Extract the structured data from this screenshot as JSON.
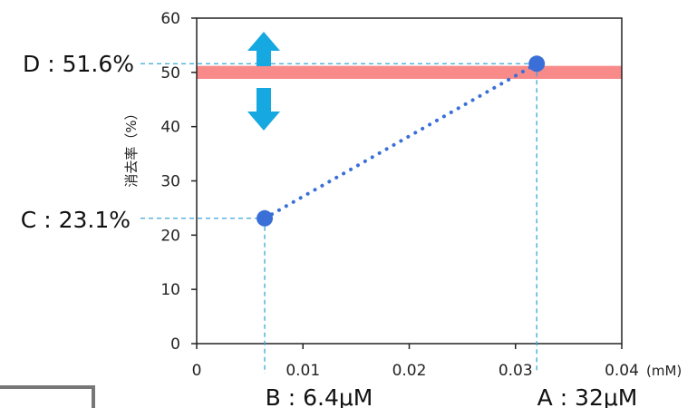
{
  "chart_data": {
    "type": "line",
    "title": "",
    "xlabel": "",
    "x_unit": "(mM)",
    "ylabel": "消去率（%）",
    "xlim": [
      0,
      0.04
    ],
    "ylim": [
      0,
      60
    ],
    "x_ticks": [
      "0",
      "0.01",
      "0.02",
      "0.03",
      "0.04"
    ],
    "y_ticks": [
      "0",
      "10",
      "20",
      "30",
      "40",
      "50",
      "60"
    ],
    "points": [
      {
        "x": 0.0064,
        "y": 23.1
      },
      {
        "x": 0.032,
        "y": 51.6
      }
    ],
    "band": {
      "y_from": 48.8,
      "y_to": 51.2,
      "color": "#f98a8a"
    },
    "point_color": "#3a6fd8",
    "guide_color": "#3aa6d9",
    "arrow_color": "#16a8e0",
    "annotations": {
      "A": "A : 32μM",
      "B": "B : 6.4μM",
      "C": "C : 23.1%",
      "D": "D : 51.6%"
    }
  }
}
